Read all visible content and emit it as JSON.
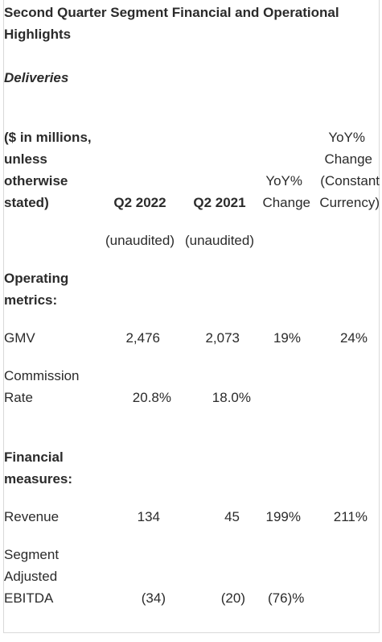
{
  "title_line1": "Second Quarter Segment Financial and Operational",
  "title_line2": "Highlights",
  "subtitle": "Deliveries",
  "header": {
    "label_lines": [
      "($ in millions,",
      "unless",
      "otherwise",
      "stated)"
    ],
    "col_q2_2022": "Q2 2022",
    "col_q2_2021": "Q2 2021",
    "col_yoy": "YoY%",
    "col_yoy_change": "Change",
    "col_cc_line1": "YoY%",
    "col_cc_line2": "Change",
    "col_cc_line3": "(Constant",
    "col_cc_line4": "Currency)",
    "unaudited_2022": "(unaudited)",
    "unaudited_2021": "(unaudited)"
  },
  "sections": {
    "operating_line1": "Operating",
    "operating_line2": "metrics:",
    "financial_line1": "Financial",
    "financial_line2": "measures:"
  },
  "rows": {
    "gmv": {
      "label": "GMV",
      "q2_2022": "2,476",
      "q2_2021": "2,073",
      "yoy": "19%",
      "yoy_cc": "24%"
    },
    "commission": {
      "label_line1": "Commission",
      "label_line2": "Rate",
      "q2_2022": "20.8%",
      "q2_2021": "18.0%"
    },
    "revenue": {
      "label": "Revenue",
      "q2_2022": "134",
      "q2_2021": "45",
      "yoy": "199%",
      "yoy_cc": "211%"
    },
    "ebitda": {
      "label_line1": "Segment",
      "label_line2": "Adjusted",
      "label_line3": "EBITDA",
      "q2_2022": "(34)",
      "q2_2021": "(20)",
      "yoy": "(76)%"
    }
  }
}
